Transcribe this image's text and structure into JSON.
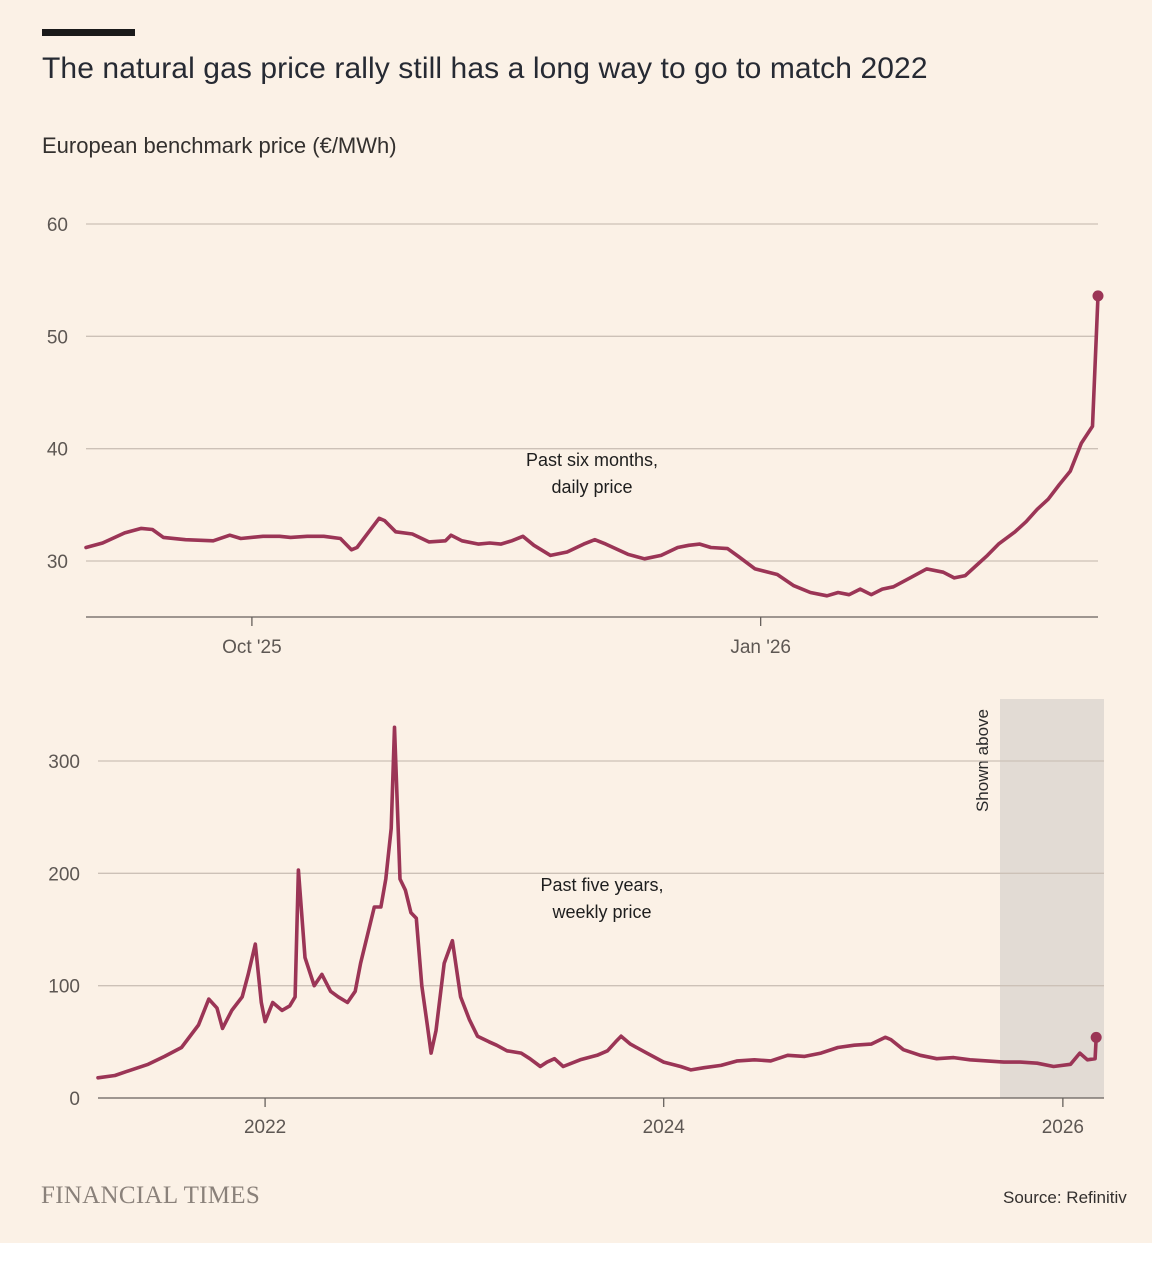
{
  "title": "The natural gas price rally still has a long way to go to match 2022",
  "subtitle": "European benchmark price (€/MWh)",
  "source": "Source: Refinitiv",
  "logo_text": "FINANCIAL TIMES",
  "colors": {
    "line": "#9b3556",
    "background": "#fbf1e6",
    "grid": "#ccc1b7",
    "shade": "#e2dbd4"
  },
  "chart_data": [
    {
      "type": "line",
      "annotation": [
        "Past six months,",
        "daily price"
      ],
      "ylim": [
        25,
        60
      ],
      "yticks": [
        30,
        40,
        50,
        60
      ],
      "grid": true,
      "x_range": [
        "2025-09-01",
        "2026-03-03"
      ],
      "x_ticks": [
        {
          "date": "2025-10-01",
          "label": "Oct '25"
        },
        {
          "date": "2026-01-01",
          "label": "Jan '26"
        }
      ],
      "end_marker": {
        "date": "2026-03-03",
        "value": 53.6
      },
      "series": [
        {
          "points": [
            [
              "2025-09-01",
              31.2
            ],
            [
              "2025-09-04",
              31.6
            ],
            [
              "2025-09-08",
              32.5
            ],
            [
              "2025-09-11",
              32.9
            ],
            [
              "2025-09-13",
              32.8
            ],
            [
              "2025-09-15",
              32.1
            ],
            [
              "2025-09-19",
              31.9
            ],
            [
              "2025-09-24",
              31.8
            ],
            [
              "2025-09-27",
              32.3
            ],
            [
              "2025-09-29",
              32.0
            ],
            [
              "2025-10-03",
              32.2
            ],
            [
              "2025-10-06",
              32.2
            ],
            [
              "2025-10-08",
              32.1
            ],
            [
              "2025-10-11",
              32.2
            ],
            [
              "2025-10-14",
              32.2
            ],
            [
              "2025-10-17",
              32.0
            ],
            [
              "2025-10-19",
              31.0
            ],
            [
              "2025-10-20",
              31.2
            ],
            [
              "2025-10-22",
              32.5
            ],
            [
              "2025-10-24",
              33.8
            ],
            [
              "2025-10-25",
              33.6
            ],
            [
              "2025-10-27",
              32.6
            ],
            [
              "2025-10-30",
              32.4
            ],
            [
              "2025-11-02",
              31.7
            ],
            [
              "2025-11-05",
              31.8
            ],
            [
              "2025-11-06",
              32.3
            ],
            [
              "2025-11-08",
              31.8
            ],
            [
              "2025-11-11",
              31.5
            ],
            [
              "2025-11-13",
              31.6
            ],
            [
              "2025-11-15",
              31.5
            ],
            [
              "2025-11-17",
              31.8
            ],
            [
              "2025-11-19",
              32.2
            ],
            [
              "2025-11-21",
              31.4
            ],
            [
              "2025-11-24",
              30.5
            ],
            [
              "2025-11-27",
              30.8
            ],
            [
              "2025-11-30",
              31.5
            ],
            [
              "2025-12-02",
              31.9
            ],
            [
              "2025-12-04",
              31.5
            ],
            [
              "2025-12-08",
              30.6
            ],
            [
              "2025-12-11",
              30.2
            ],
            [
              "2025-12-14",
              30.5
            ],
            [
              "2025-12-17",
              31.2
            ],
            [
              "2025-12-19",
              31.4
            ],
            [
              "2025-12-21",
              31.5
            ],
            [
              "2025-12-23",
              31.2
            ],
            [
              "2025-12-26",
              31.1
            ],
            [
              "2025-12-28",
              30.4
            ],
            [
              "2025-12-31",
              29.3
            ],
            [
              "2026-01-04",
              28.8
            ],
            [
              "2026-01-07",
              27.8
            ],
            [
              "2026-01-10",
              27.2
            ],
            [
              "2026-01-13",
              26.9
            ],
            [
              "2026-01-15",
              27.2
            ],
            [
              "2026-01-17",
              27.0
            ],
            [
              "2026-01-19",
              27.5
            ],
            [
              "2026-01-21",
              27.0
            ],
            [
              "2026-01-23",
              27.5
            ],
            [
              "2026-01-25",
              27.7
            ],
            [
              "2026-01-28",
              28.5
            ],
            [
              "2026-01-31",
              29.3
            ],
            [
              "2026-02-03",
              29.0
            ],
            [
              "2026-02-05",
              28.5
            ],
            [
              "2026-02-07",
              28.7
            ],
            [
              "2026-02-09",
              29.6
            ],
            [
              "2026-02-11",
              30.5
            ],
            [
              "2026-02-13",
              31.5
            ],
            [
              "2026-02-16",
              32.6
            ],
            [
              "2026-02-18",
              33.5
            ],
            [
              "2026-02-20",
              34.6
            ],
            [
              "2026-02-22",
              35.5
            ],
            [
              "2026-02-24",
              36.8
            ],
            [
              "2026-02-26",
              38.0
            ],
            [
              "2026-02-28",
              40.5
            ],
            [
              "2026-03-02",
              42.0
            ],
            [
              "2026-03-03",
              53.6
            ]
          ]
        }
      ]
    },
    {
      "type": "line",
      "annotation": [
        "Past five years,",
        "weekly price"
      ],
      "ylim": [
        0,
        350
      ],
      "yticks": [
        0,
        100,
        200,
        300
      ],
      "grid": true,
      "x_range": [
        "2021-03-01",
        "2026-03-10"
      ],
      "x_ticks": [
        {
          "date": "2022-01-01",
          "label": "2022"
        },
        {
          "date": "2024-01-01",
          "label": "2024"
        },
        {
          "date": "2026-01-01",
          "label": "2026"
        }
      ],
      "shaded_region": {
        "label": "Shown above",
        "start": "2025-09-01",
        "end": "2026-03-10"
      },
      "end_marker": {
        "date": "2026-03-03",
        "value": 54
      },
      "series": [
        {
          "points": [
            [
              "2021-03-01",
              18
            ],
            [
              "2021-04-01",
              20
            ],
            [
              "2021-05-01",
              25
            ],
            [
              "2021-06-01",
              30
            ],
            [
              "2021-07-01",
              37
            ],
            [
              "2021-08-01",
              45
            ],
            [
              "2021-09-01",
              65
            ],
            [
              "2021-09-20",
              88
            ],
            [
              "2021-10-05",
              80
            ],
            [
              "2021-10-15",
              62
            ],
            [
              "2021-11-01",
              78
            ],
            [
              "2021-11-20",
              90
            ],
            [
              "2021-12-01",
              110
            ],
            [
              "2021-12-14",
              137
            ],
            [
              "2021-12-25",
              85
            ],
            [
              "2022-01-01",
              68
            ],
            [
              "2022-01-15",
              85
            ],
            [
              "2022-02-01",
              78
            ],
            [
              "2022-02-15",
              82
            ],
            [
              "2022-02-25",
              90
            ],
            [
              "2022-03-03",
              203
            ],
            [
              "2022-03-15",
              125
            ],
            [
              "2022-04-01",
              100
            ],
            [
              "2022-04-15",
              110
            ],
            [
              "2022-05-01",
              95
            ],
            [
              "2022-05-15",
              90
            ],
            [
              "2022-06-01",
              85
            ],
            [
              "2022-06-15",
              95
            ],
            [
              "2022-06-25",
              120
            ],
            [
              "2022-07-05",
              140
            ],
            [
              "2022-07-20",
              170
            ],
            [
              "2022-08-01",
              170
            ],
            [
              "2022-08-10",
              195
            ],
            [
              "2022-08-20",
              240
            ],
            [
              "2022-08-26",
              330
            ],
            [
              "2022-09-05",
              195
            ],
            [
              "2022-09-15",
              185
            ],
            [
              "2022-09-25",
              165
            ],
            [
              "2022-10-05",
              160
            ],
            [
              "2022-10-15",
              100
            ],
            [
              "2022-10-25",
              65
            ],
            [
              "2022-11-01",
              40
            ],
            [
              "2022-11-10",
              60
            ],
            [
              "2022-11-25",
              120
            ],
            [
              "2022-12-10",
              140
            ],
            [
              "2022-12-25",
              90
            ],
            [
              "2023-01-10",
              70
            ],
            [
              "2023-01-25",
              55
            ],
            [
              "2023-02-15",
              50
            ],
            [
              "2023-03-01",
              47
            ],
            [
              "2023-03-20",
              42
            ],
            [
              "2023-04-15",
              40
            ],
            [
              "2023-05-01",
              35
            ],
            [
              "2023-05-20",
              28
            ],
            [
              "2023-06-01",
              32
            ],
            [
              "2023-06-15",
              35
            ],
            [
              "2023-07-01",
              28
            ],
            [
              "2023-08-01",
              34
            ],
            [
              "2023-09-01",
              38
            ],
            [
              "2023-09-20",
              42
            ],
            [
              "2023-10-05",
              50
            ],
            [
              "2023-10-15",
              55
            ],
            [
              "2023-11-01",
              48
            ],
            [
              "2023-12-01",
              40
            ],
            [
              "2024-01-01",
              32
            ],
            [
              "2024-02-01",
              28
            ],
            [
              "2024-02-20",
              25
            ],
            [
              "2024-03-15",
              27
            ],
            [
              "2024-04-15",
              29
            ],
            [
              "2024-05-15",
              33
            ],
            [
              "2024-06-15",
              34
            ],
            [
              "2024-07-15",
              33
            ],
            [
              "2024-08-15",
              38
            ],
            [
              "2024-09-15",
              37
            ],
            [
              "2024-10-15",
              40
            ],
            [
              "2024-11-15",
              45
            ],
            [
              "2024-12-15",
              47
            ],
            [
              "2025-01-15",
              48
            ],
            [
              "2025-02-10",
              54
            ],
            [
              "2025-02-20",
              52
            ],
            [
              "2025-03-15",
              43
            ],
            [
              "2025-04-15",
              38
            ],
            [
              "2025-05-15",
              35
            ],
            [
              "2025-06-15",
              36
            ],
            [
              "2025-07-15",
              34
            ],
            [
              "2025-08-15",
              33
            ],
            [
              "2025-09-15",
              32
            ],
            [
              "2025-10-15",
              32
            ],
            [
              "2025-11-15",
              31
            ],
            [
              "2025-12-15",
              28
            ],
            [
              "2026-01-15",
              30
            ],
            [
              "2026-02-01",
              40
            ],
            [
              "2026-02-15",
              34
            ],
            [
              "2026-03-01",
              35
            ],
            [
              "2026-03-03",
              54
            ]
          ]
        }
      ]
    }
  ]
}
